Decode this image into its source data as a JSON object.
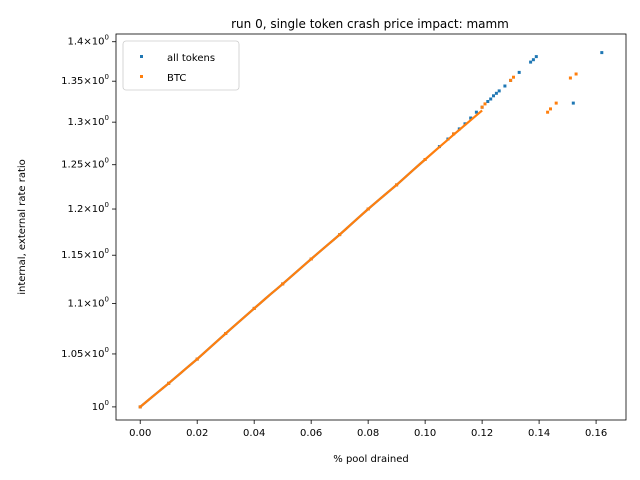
{
  "chart_data": {
    "type": "scatter",
    "title": "run 0, single token crash price impact: mamm",
    "xlabel": "% pool drained",
    "ylabel": "internal, external rate ratio",
    "xlim": [
      -0.0085,
      0.1705
    ],
    "ylim": [
      0.988,
      1.41
    ],
    "y_scale": "log",
    "x_ticks": [
      0.0,
      0.02,
      0.04,
      0.06,
      0.08,
      0.1,
      0.12,
      0.14,
      0.16
    ],
    "x_tick_labels": [
      "0.00",
      "0.02",
      "0.04",
      "0.06",
      "0.08",
      "0.10",
      "0.12",
      "0.14",
      "0.16"
    ],
    "y_ticks": [
      1.0,
      1.05,
      1.1,
      1.15,
      1.2,
      1.25,
      1.3,
      1.35,
      1.4
    ],
    "y_tick_labels": [
      "10^0",
      "1.05×10^0",
      "1.1×10^0",
      "1.15×10^0",
      "1.2×10^0",
      "1.25×10^0",
      "1.3×10^0",
      "1.35×10^0",
      "1.4×10^0"
    ],
    "legend": {
      "placement": "top-left",
      "entries": [
        "all tokens",
        "BTC"
      ]
    },
    "grid": false,
    "series": [
      {
        "name": "all tokens",
        "color": "#1f77b4",
        "x": [
          0.0,
          0.01,
          0.02,
          0.03,
          0.04,
          0.05,
          0.06,
          0.07,
          0.08,
          0.09,
          0.1,
          0.105,
          0.108,
          0.11,
          0.112,
          0.114,
          0.116,
          0.118,
          0.12,
          0.122,
          0.123,
          0.124,
          0.125,
          0.126,
          0.128,
          0.13,
          0.133,
          0.137,
          0.138,
          0.139,
          0.152,
          0.162
        ],
        "y": [
          1.0,
          1.022,
          1.045,
          1.07,
          1.095,
          1.12,
          1.146,
          1.172,
          1.2,
          1.227,
          1.256,
          1.271,
          1.28,
          1.286,
          1.292,
          1.298,
          1.305,
          1.312,
          1.318,
          1.325,
          1.328,
          1.332,
          1.335,
          1.338,
          1.344,
          1.351,
          1.361,
          1.374,
          1.377,
          1.381,
          1.323,
          1.386
        ]
      },
      {
        "name": "BTC",
        "color": "#ff7f0e",
        "x": [
          0.0,
          0.01,
          0.02,
          0.03,
          0.04,
          0.05,
          0.06,
          0.07,
          0.08,
          0.09,
          0.1,
          0.11,
          0.12,
          0.121,
          0.13,
          0.131,
          0.143,
          0.144,
          0.146,
          0.151,
          0.153
        ],
        "y": [
          1.0,
          1.022,
          1.045,
          1.07,
          1.095,
          1.12,
          1.146,
          1.172,
          1.2,
          1.227,
          1.256,
          1.286,
          1.318,
          1.322,
          1.351,
          1.355,
          1.312,
          1.316,
          1.323,
          1.354,
          1.359
        ]
      }
    ]
  }
}
